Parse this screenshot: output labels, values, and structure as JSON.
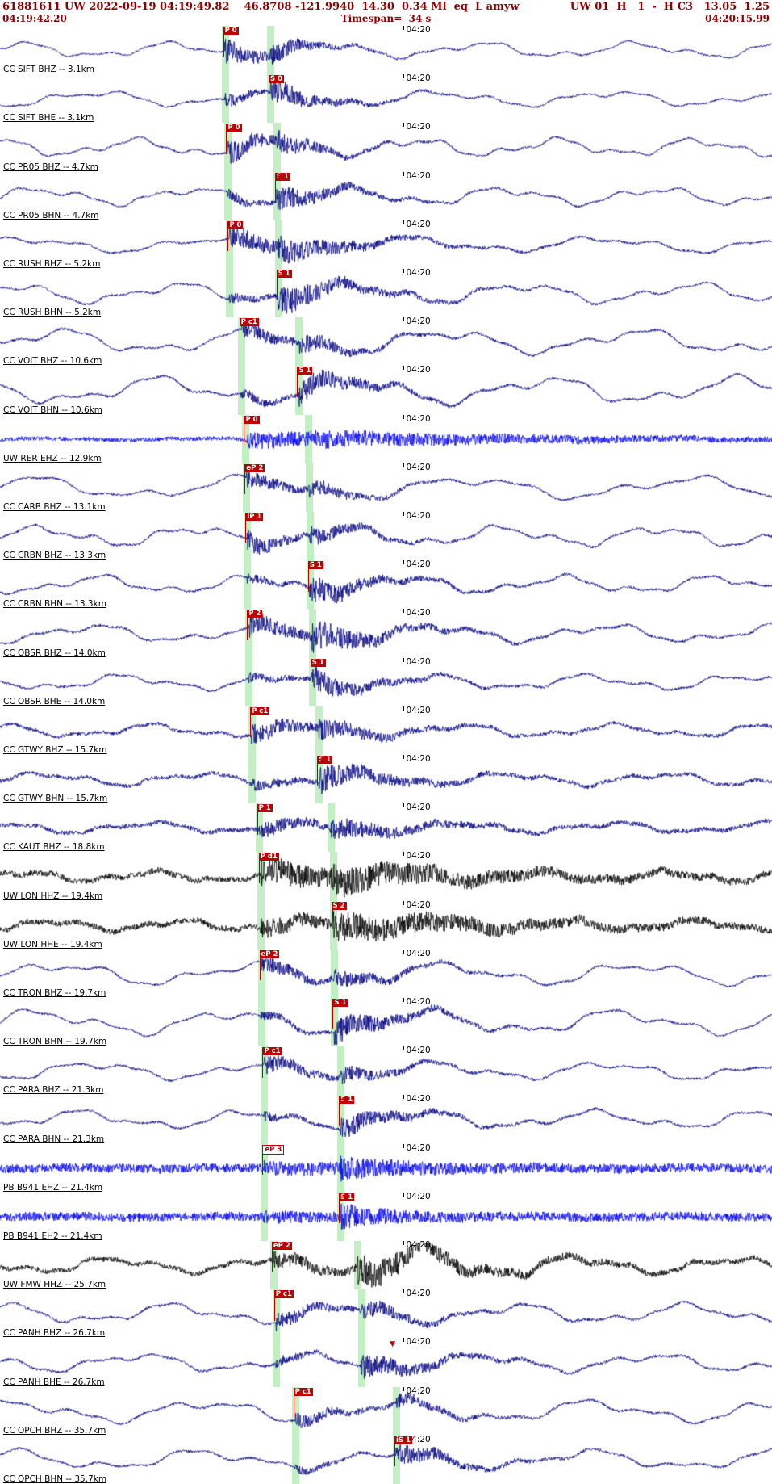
{
  "header": {
    "event_line": "61881611 UW 2022-09-19 04:19:49.82    46.8708 -121.9940  14.30  0.34 Ml  eq  L amyw",
    "channel_info": "UW 01  H   1  -  H C3   13.05  1.25",
    "start_time": "04:19:42.20",
    "timespan": "Timespan=  34 s",
    "end_time": "04:20:15.99"
  },
  "time_tick": {
    "label": "04:20",
    "x": 0.524
  },
  "colors": {
    "header_text": "#8b0000",
    "trace_navy": "#000080",
    "trace_blue": "#0000ee",
    "trace_black": "#000000",
    "pick_flag": "#c00000",
    "phase_band": "#9fe49f"
  },
  "traces": [
    {
      "label": "CC SIFT BHZ -- 3.1km",
      "color": "#000080",
      "picks": [
        {
          "label": "P 0",
          "x": 0.289
        }
      ],
      "bands": [
        0.289,
        0.348
      ],
      "arrows": [],
      "wave": {
        "seed": 101,
        "wa": 7,
        "wc": 5,
        "na": 1.2,
        "p": 0.291,
        "pa": 16,
        "pd": 0.05,
        "s": 0.35,
        "sa": 8,
        "sd": 0.05
      }
    },
    {
      "label": "CC SIFT BHE -- 3.1km",
      "color": "#000080",
      "picks": [
        {
          "label": "S 0",
          "x": 0.348
        }
      ],
      "bands": [
        0.289,
        0.348
      ],
      "arrows": [],
      "wave": {
        "seed": 102,
        "wa": 7,
        "wc": 4.5,
        "na": 1.2,
        "p": 0.291,
        "pa": 8,
        "pd": 0.04,
        "s": 0.35,
        "sa": 15,
        "sd": 0.06
      }
    },
    {
      "label": "CC PR05 BHZ -- 4.7km",
      "color": "#000080",
      "picks": [
        {
          "label": "P 0",
          "x": 0.293
        }
      ],
      "bands": [
        0.293,
        0.356
      ],
      "arrows": [],
      "wave": {
        "seed": 103,
        "wa": 8,
        "wc": 5.5,
        "na": 1.3,
        "p": 0.295,
        "pa": 14,
        "pd": 0.06,
        "s": 0.358,
        "sa": 8,
        "sd": 0.05
      }
    },
    {
      "label": "CC PR05 BHN -- 4.7km",
      "color": "#000080",
      "picks": [
        {
          "label": "S 1",
          "x": 0.356
        }
      ],
      "bands": [
        0.293,
        0.356
      ],
      "arrows": [
        {
          "x": 0.364,
          "style": "filled"
        }
      ],
      "wave": {
        "seed": 104,
        "wa": 8,
        "wc": 5,
        "na": 1.3,
        "p": 0.295,
        "pa": 7,
        "pd": 0.04,
        "s": 0.358,
        "sa": 14,
        "sd": 0.07
      }
    },
    {
      "label": "CC RUSH BHZ -- 5.2km",
      "color": "#000080",
      "picks": [
        {
          "label": "P 0",
          "x": 0.295
        }
      ],
      "bands": [
        0.295,
        0.358
      ],
      "arrows": [],
      "wave": {
        "seed": 105,
        "wa": 7,
        "wc": 4,
        "na": 1.4,
        "p": 0.297,
        "pa": 13,
        "pd": 0.1,
        "s": 0.36,
        "sa": 9,
        "sd": 0.08
      }
    },
    {
      "label": "CC RUSH BHN -- 5.2km",
      "color": "#000080",
      "picks": [
        {
          "label": "S 1",
          "x": 0.358
        }
      ],
      "bands": [
        0.295,
        0.358
      ],
      "arrows": [
        {
          "x": 0.368,
          "style": "filled"
        }
      ],
      "wave": {
        "seed": 106,
        "wa": 9,
        "wc": 4.5,
        "na": 1.4,
        "p": 0.297,
        "pa": 6,
        "pd": 0.05,
        "s": 0.36,
        "sa": 16,
        "sd": 0.09
      }
    },
    {
      "label": "CC VOIT BHZ -- 10.6km",
      "color": "#000080",
      "picks": [
        {
          "label": "P c1",
          "x": 0.31
        }
      ],
      "bands": [
        0.31,
        0.385
      ],
      "arrows": [],
      "wave": {
        "seed": 107,
        "wa": 11,
        "wc": 4,
        "na": 1.5,
        "p": 0.312,
        "pa": 12,
        "pd": 0.06,
        "s": 0.387,
        "sa": 8,
        "sd": 0.06
      }
    },
    {
      "label": "CC VOIT BHN -- 10.6km",
      "color": "#000080",
      "picks": [
        {
          "label": "S 1",
          "x": 0.385
        }
      ],
      "bands": [
        0.31,
        0.385
      ],
      "arrows": [],
      "wave": {
        "seed": 108,
        "wa": 12,
        "wc": 4,
        "na": 1.5,
        "p": 0.312,
        "pa": 6,
        "pd": 0.05,
        "s": 0.387,
        "sa": 15,
        "sd": 0.07
      }
    },
    {
      "label": "UW RER EHZ -- 12.9km",
      "color": "#0000ee",
      "picks": [
        {
          "label": "P 0",
          "x": 0.316
        }
      ],
      "bands": [
        0.316,
        0.397
      ],
      "arrows": [],
      "wave": {
        "seed": 109,
        "wa": 1,
        "wc": 5,
        "na": 2.6,
        "p": 0.318,
        "pa": 9,
        "pd": 0.3,
        "s": 0.399,
        "sa": 3,
        "sd": 0.2
      }
    },
    {
      "label": "CC CARB BHZ -- 13.1km",
      "color": "#000080",
      "picks": [
        {
          "label": "eP 2",
          "x": 0.317
        }
      ],
      "bands": [
        0.317,
        0.398
      ],
      "arrows": [],
      "wave": {
        "seed": 110,
        "wa": 10,
        "wc": 3.5,
        "na": 1.4,
        "p": 0.319,
        "pa": 12,
        "pd": 0.05,
        "s": 0.4,
        "sa": 8,
        "sd": 0.06
      }
    },
    {
      "label": "CC CRBN BHZ -- 13.3km",
      "color": "#000080",
      "picks": [
        {
          "label": "iP 1",
          "x": 0.318
        }
      ],
      "bands": [
        0.318,
        0.399
      ],
      "arrows": [],
      "wave": {
        "seed": 111,
        "wa": 9,
        "wc": 5,
        "na": 1.5,
        "p": 0.32,
        "pa": 13,
        "pd": 0.05,
        "s": 0.401,
        "sa": 8,
        "sd": 0.06
      }
    },
    {
      "label": "CC CRBN BHN -- 13.3km",
      "color": "#000080",
      "picks": [
        {
          "label": "S 1",
          "x": 0.399
        }
      ],
      "bands": [
        0.318,
        0.399
      ],
      "arrows": [],
      "wave": {
        "seed": 112,
        "wa": 8,
        "wc": 5,
        "na": 1.5,
        "p": 0.32,
        "pa": 6,
        "pd": 0.04,
        "s": 0.401,
        "sa": 15,
        "sd": 0.07
      }
    },
    {
      "label": "CC OBSR BHZ -- 14.0km",
      "color": "#000080",
      "picks": [
        {
          "label": "P 2",
          "x": 0.32
        }
      ],
      "bands": [
        0.32,
        0.402
      ],
      "arrows": [],
      "wave": {
        "seed": 113,
        "wa": 8,
        "wc": 4.5,
        "na": 1.6,
        "p": 0.322,
        "pa": 12,
        "pd": 0.08,
        "s": 0.404,
        "sa": 14,
        "sd": 0.08
      }
    },
    {
      "label": "CC OBSR BHE -- 14.0km",
      "color": "#000080",
      "picks": [
        {
          "label": "S 1",
          "x": 0.402
        }
      ],
      "bands": [
        0.32,
        0.402
      ],
      "arrows": [],
      "wave": {
        "seed": 114,
        "wa": 7,
        "wc": 5,
        "na": 1.5,
        "p": 0.322,
        "pa": 6,
        "pd": 0.05,
        "s": 0.404,
        "sa": 14,
        "sd": 0.07
      }
    },
    {
      "label": "CC GTWY BHZ -- 15.7km",
      "color": "#000080",
      "picks": [
        {
          "label": "P c1",
          "x": 0.324
        }
      ],
      "bands": [
        0.324,
        0.411
      ],
      "arrows": [],
      "wave": {
        "seed": 115,
        "wa": 6,
        "wc": 5,
        "na": 2.2,
        "p": 0.326,
        "pa": 11,
        "pd": 0.07,
        "s": 0.413,
        "sa": 9,
        "sd": 0.07
      }
    },
    {
      "label": "CC GTWY BHN -- 15.7km",
      "color": "#000080",
      "picks": [
        {
          "label": "S 1",
          "x": 0.411
        }
      ],
      "bands": [
        0.324,
        0.411
      ],
      "arrows": [
        {
          "x": 0.419,
          "style": "filled"
        }
      ],
      "wave": {
        "seed": 116,
        "wa": 6,
        "wc": 5,
        "na": 2.4,
        "p": 0.326,
        "pa": 6,
        "pd": 0.05,
        "s": 0.413,
        "sa": 14,
        "sd": 0.08
      }
    },
    {
      "label": "CC KAUT BHZ -- 18.8km",
      "color": "#000080",
      "picks": [
        {
          "label": "P 1",
          "x": 0.333
        }
      ],
      "bands": [
        0.333,
        0.426
      ],
      "arrows": [],
      "wave": {
        "seed": 117,
        "wa": 5,
        "wc": 5,
        "na": 2.8,
        "p": 0.335,
        "pa": 9,
        "pd": 0.06,
        "s": 0.428,
        "sa": 11,
        "sd": 0.08
      }
    },
    {
      "label": "UW LON HHZ -- 19.4km",
      "color": "#000000",
      "picks": [
        {
          "label": "P d1",
          "x": 0.335
        }
      ],
      "bands": [
        0.335,
        0.429
      ],
      "arrows": [],
      "wave": {
        "seed": 118,
        "wa": 5,
        "wc": 6,
        "na": 3.5,
        "p": 0.337,
        "pa": 14,
        "pd": 0.2,
        "s": 0.431,
        "sa": 8,
        "sd": 0.15
      }
    },
    {
      "label": "UW LON HHE -- 19.4km",
      "color": "#000000",
      "picks": [
        {
          "label": "S 2",
          "x": 0.429
        }
      ],
      "bands": [
        0.335,
        0.429
      ],
      "arrows": [],
      "wave": {
        "seed": 119,
        "wa": 5,
        "wc": 6,
        "na": 3.5,
        "p": 0.337,
        "pa": 9,
        "pd": 0.1,
        "s": 0.431,
        "sa": 13,
        "sd": 0.2
      }
    },
    {
      "label": "CC TRON BHZ -- 19.7km",
      "color": "#000080",
      "picks": [
        {
          "label": "eP 2",
          "x": 0.336
        }
      ],
      "bands": [
        0.336,
        0.431
      ],
      "arrows": [],
      "wave": {
        "seed": 120,
        "wa": 10,
        "wc": 4,
        "na": 1.4,
        "p": 0.338,
        "pa": 11,
        "pd": 0.06,
        "s": 0.433,
        "sa": 8,
        "sd": 0.07
      }
    },
    {
      "label": "CC TRON BHN -- 19.7km",
      "color": "#000080",
      "picks": [
        {
          "label": "S 1",
          "x": 0.431
        }
      ],
      "bands": [
        0.336,
        0.431
      ],
      "arrows": [
        {
          "x": 0.442,
          "style": "open"
        }
      ],
      "wave": {
        "seed": 121,
        "wa": 11,
        "wc": 4,
        "na": 1.4,
        "p": 0.338,
        "pa": 5,
        "pd": 0.05,
        "s": 0.433,
        "sa": 15,
        "sd": 0.08
      }
    },
    {
      "label": "CC PARA BHZ -- 21.3km",
      "color": "#000080",
      "picks": [
        {
          "label": "P c1",
          "x": 0.34
        }
      ],
      "bands": [
        0.34,
        0.439
      ],
      "arrows": [],
      "wave": {
        "seed": 122,
        "wa": 8,
        "wc": 4.5,
        "na": 1.5,
        "p": 0.342,
        "pa": 11,
        "pd": 0.06,
        "s": 0.441,
        "sa": 8,
        "sd": 0.06
      }
    },
    {
      "label": "CC PARA BHN -- 21.3km",
      "color": "#000080",
      "picks": [
        {
          "label": "S 1",
          "x": 0.439
        }
      ],
      "bands": [
        0.34,
        0.439
      ],
      "arrows": [
        {
          "x": 0.447,
          "style": "filled"
        }
      ],
      "wave": {
        "seed": 123,
        "wa": 8,
        "wc": 4.5,
        "na": 1.5,
        "p": 0.342,
        "pa": 5,
        "pd": 0.04,
        "s": 0.441,
        "sa": 14,
        "sd": 0.07
      }
    },
    {
      "label": "PB B941 EHZ -- 21.4km",
      "color": "#0000ee",
      "picks": [
        {
          "label": "eP 3",
          "x": 0.34,
          "outline": true
        }
      ],
      "bands": [
        0.34,
        0.439
      ],
      "arrows": [],
      "wave": {
        "seed": 124,
        "wa": 0.8,
        "wc": 5,
        "na": 5.5,
        "p": 0.342,
        "pa": 4,
        "pd": 0.2,
        "s": 0.441,
        "sa": 9,
        "sd": 0.06
      }
    },
    {
      "label": "PB B941 EH2 -- 21.4km",
      "color": "#0000ee",
      "picks": [
        {
          "label": "S 1",
          "x": 0.439
        }
      ],
      "bands": [
        0.34,
        0.439
      ],
      "arrows": [
        {
          "x": 0.448,
          "style": "filled"
        }
      ],
      "wave": {
        "seed": 125,
        "wa": 0.8,
        "wc": 5,
        "na": 5.5,
        "p": 0.342,
        "pa": 3,
        "pd": 0.1,
        "s": 0.441,
        "sa": 10,
        "sd": 0.06
      }
    },
    {
      "label": "UW FMW HHZ -- 25.7km",
      "color": "#000000",
      "picks": [
        {
          "label": "eP 2",
          "x": 0.352
        }
      ],
      "bands": [
        0.352,
        0.461
      ],
      "arrows": [],
      "wave": {
        "seed": 126,
        "wa": 7,
        "wc": 5,
        "na": 3,
        "p": 0.354,
        "pa": 8,
        "pd": 0.08,
        "s": 0.463,
        "sa": 15,
        "sd": 0.12,
        "swb": 3
      }
    },
    {
      "label": "CC PANH BHZ -- 26.7km",
      "color": "#000080",
      "picks": [
        {
          "label": "P c1",
          "x": 0.355
        }
      ],
      "bands": [
        0.355,
        0.466
      ],
      "arrows": [],
      "wave": {
        "seed": 127,
        "wa": 9,
        "wc": 4.5,
        "na": 1.6,
        "p": 0.357,
        "pa": 10,
        "pd": 0.06,
        "s": 0.468,
        "sa": 9,
        "sd": 0.07
      }
    },
    {
      "label": "CC PANH BHE -- 26.7km",
      "color": "#000080",
      "picks": [],
      "bands": [
        0.355,
        0.466
      ],
      "arrows": [
        {
          "x": 0.509,
          "style": "filled"
        }
      ],
      "wave": {
        "seed": 128,
        "wa": 8,
        "wc": 4.5,
        "na": 1.6,
        "p": 0.357,
        "pa": 5,
        "pd": 0.05,
        "s": 0.468,
        "sa": 13,
        "sd": 0.08
      }
    },
    {
      "label": "CC OPCH BHZ -- 35.7km",
      "color": "#000080",
      "picks": [
        {
          "label": "P c1",
          "x": 0.38
        }
      ],
      "bands": [
        0.38,
        0.511
      ],
      "arrows": [],
      "wave": {
        "seed": 129,
        "wa": 10,
        "wc": 4,
        "na": 1.5,
        "p": 0.382,
        "pa": 9,
        "pd": 0.06,
        "s": 0.513,
        "sa": 7,
        "sd": 0.06
      }
    },
    {
      "label": "CC OPCH BHN -- 35.7km",
      "color": "#000080",
      "picks": [
        {
          "label": "iS 1",
          "x": 0.511
        }
      ],
      "bands": [
        0.38,
        0.511
      ],
      "arrows": [],
      "wave": {
        "seed": 130,
        "wa": 9,
        "wc": 4,
        "na": 1.5,
        "p": 0.382,
        "pa": 4,
        "pd": 0.05,
        "s": 0.513,
        "sa": 12,
        "sd": 0.07
      }
    }
  ]
}
